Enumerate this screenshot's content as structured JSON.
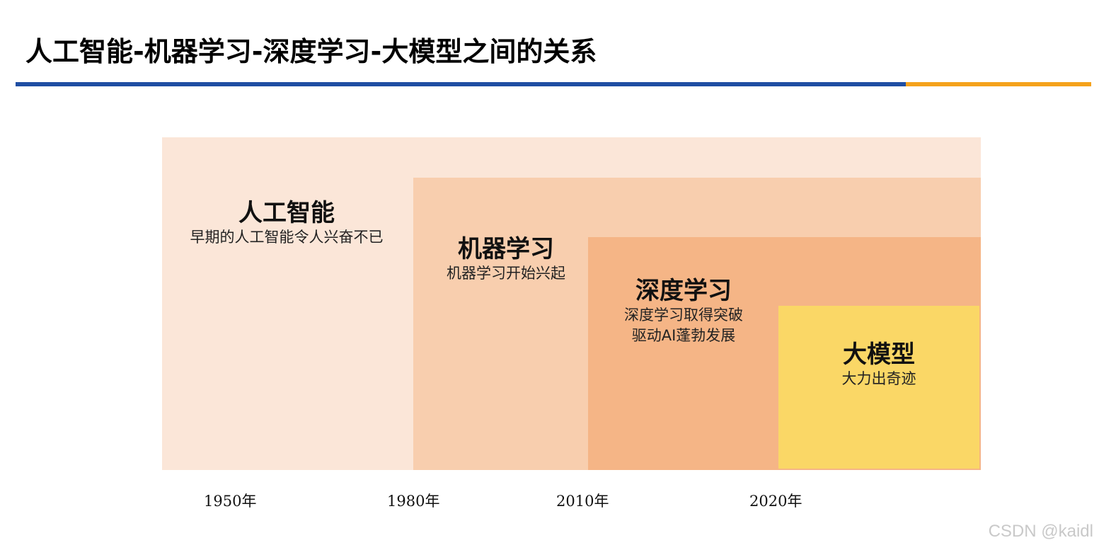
{
  "title": "人工智能-机器学习-深度学习-大模型之间的关系",
  "colors": {
    "rule_main": "#1f4ea3",
    "rule_accent": "#f5a21b",
    "ai": "#fbe6d8",
    "ml": "#f8ceae",
    "dl": "#f5b586",
    "lm": "#fad766"
  },
  "layers": {
    "ai": {
      "heading": "人工智能",
      "desc1": "早期的人工智能令人兴奋不已"
    },
    "ml": {
      "heading": "机器学习",
      "desc1": "机器学习开始兴起"
    },
    "dl": {
      "heading": "深度学习",
      "desc1": "深度学习取得突破",
      "desc2": "驱动AI蓬勃发展"
    },
    "lm": {
      "heading": "大模型",
      "desc1": "大力出奇迹"
    }
  },
  "timeline": [
    "1950年",
    "1980年",
    "2010年",
    "2020年"
  ],
  "watermark": "CSDN @kaidl"
}
